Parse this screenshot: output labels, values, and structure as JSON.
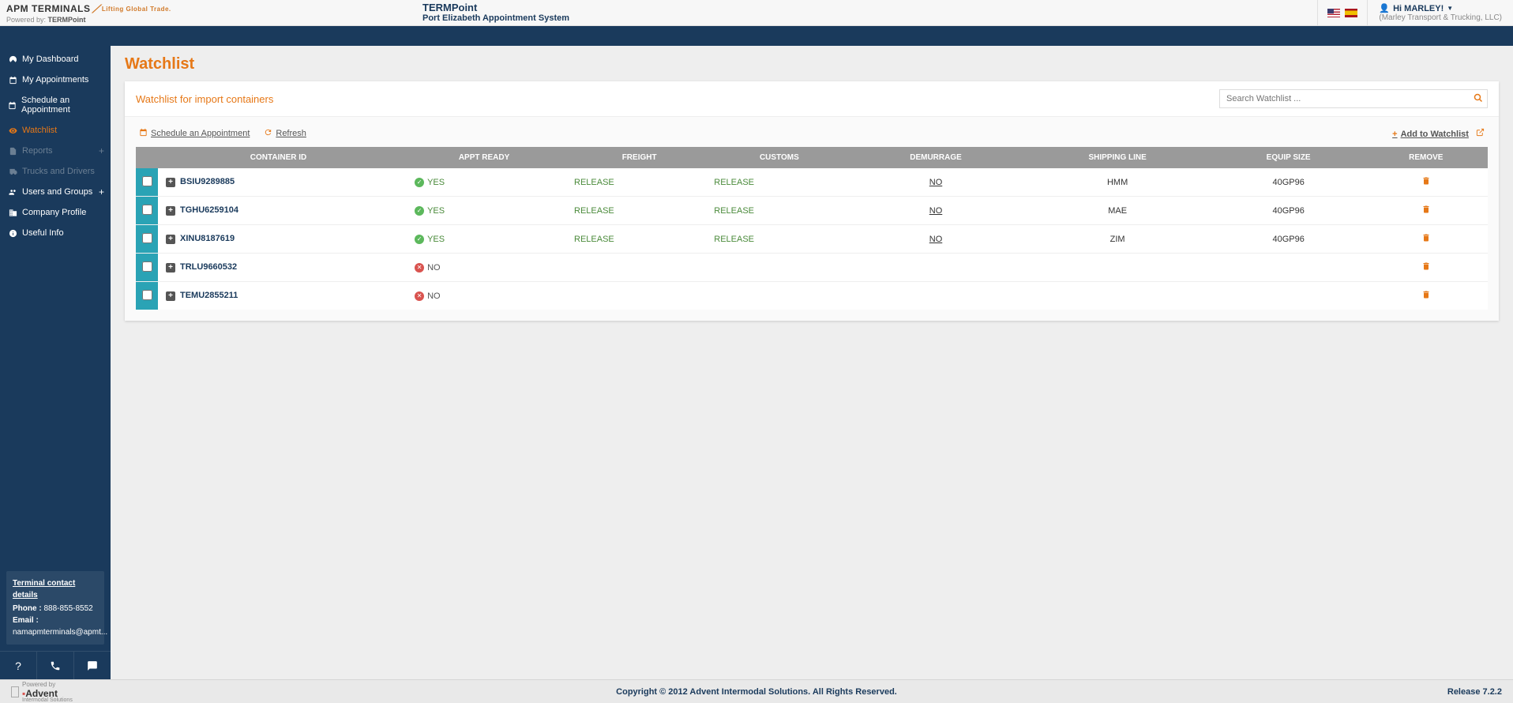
{
  "header": {
    "logo_text": "APM TERMINALS",
    "logo_tag": "Lifting Global Trade.",
    "powered_label": "Powered by:",
    "powered_name": "TERMPoint",
    "app_name": "TERMPoint",
    "app_subtitle": "Port Elizabeth Appointment System",
    "greeting": "Hi MARLEY!",
    "company": "(Marley Transport & Trucking, LLC)"
  },
  "sidebar": {
    "items": [
      {
        "label": "My Dashboard",
        "icon": "dash"
      },
      {
        "label": "My Appointments",
        "icon": "cal"
      },
      {
        "label": "Schedule an Appointment",
        "icon": "cal"
      },
      {
        "label": "Watchlist",
        "icon": "eye",
        "active": true
      },
      {
        "label": "Reports",
        "icon": "report",
        "disabled": true,
        "plus": true
      },
      {
        "label": "Trucks and Drivers",
        "icon": "truck",
        "disabled": true
      },
      {
        "label": "Users and Groups",
        "icon": "users",
        "plus": true,
        "ug": true
      },
      {
        "label": "Company Profile",
        "icon": "building"
      },
      {
        "label": "Useful Info",
        "icon": "info"
      }
    ],
    "contact": {
      "title": "Terminal contact details",
      "phone_label": "Phone :",
      "phone": "888-855-8552",
      "email_label": "Email :",
      "email": "namapmterminals@apmt..."
    }
  },
  "page": {
    "title": "Watchlist",
    "panel_title": "Watchlist for import containers",
    "search_placeholder": "Search Watchlist ...",
    "toolbar": {
      "schedule": "Schedule an Appointment",
      "refresh": "Refresh",
      "add": "Add to Watchlist"
    },
    "columns": [
      "",
      "CONTAINER ID",
      "APPT READY",
      "FREIGHT",
      "CUSTOMS",
      "DEMURRAGE",
      "SHIPPING LINE",
      "EQUIP SIZE",
      "REMOVE"
    ],
    "rows": [
      {
        "container": "BSIU9289885",
        "ready": "YES",
        "freight": "RELEASE",
        "customs": "RELEASE",
        "demurrage": "NO",
        "line": "HMM",
        "equip": "40GP96"
      },
      {
        "container": "TGHU6259104",
        "ready": "YES",
        "freight": "RELEASE",
        "customs": "RELEASE",
        "demurrage": "NO",
        "line": "MAE",
        "equip": "40GP96"
      },
      {
        "container": "XINU8187619",
        "ready": "YES",
        "freight": "RELEASE",
        "customs": "RELEASE",
        "demurrage": "NO",
        "line": "ZIM",
        "equip": "40GP96"
      },
      {
        "container": "TRLU9660532",
        "ready": "NO",
        "freight": "",
        "customs": "",
        "demurrage": "",
        "line": "",
        "equip": ""
      },
      {
        "container": "TEMU2855211",
        "ready": "NO",
        "freight": "",
        "customs": "",
        "demurrage": "",
        "line": "",
        "equip": ""
      }
    ]
  },
  "footer": {
    "powered": "Powered by",
    "brand": "Advent",
    "brand_sub": "Intermodal Solutions",
    "copyright": "Copyright © 2012 Advent Intermodal Solutions. All Rights Reserved.",
    "release": "Release 7.2.2"
  },
  "colors": {
    "accent": "#e67817",
    "navy": "#1a3a5c",
    "teal": "#2aa3b5",
    "green": "#4a8a3a",
    "grayhdr": "#9a9a9a"
  }
}
